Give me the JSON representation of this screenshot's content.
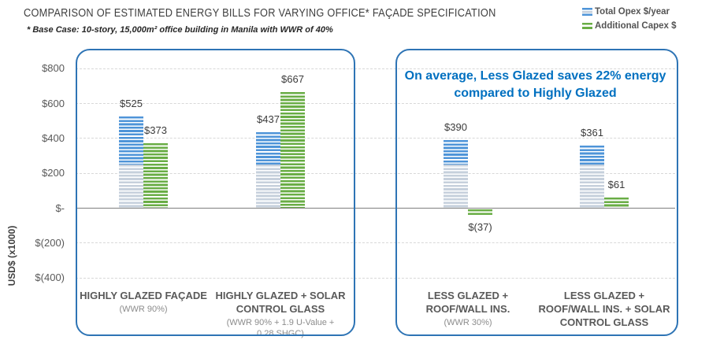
{
  "header": {
    "title": "COMPARISON OF ESTIMATED ENERGY BILLS FOR VARYING OFFICE* FAÇADE SPECIFICATION",
    "subtitle": "* Base Case: 10-story, 15,000m² office building in Manila with WWR of 40%"
  },
  "legend": {
    "items": [
      {
        "label": "Total Opex $/year",
        "swatch": "blue-grey-stripes"
      },
      {
        "label": "Additional Capex $",
        "swatch": "green-stripes"
      }
    ]
  },
  "annotation": {
    "text": "On average, Less Glazed saves 22% energy compared to Highly Glazed",
    "color": "#0070C0"
  },
  "y_axis": {
    "label": "USD$ (x1000)",
    "ticks": [
      {
        "label": "$800",
        "value": 800
      },
      {
        "label": "$600",
        "value": 600
      },
      {
        "label": "$400",
        "value": 400
      },
      {
        "label": "$200",
        "value": 200
      },
      {
        "label": "$-",
        "value": 0
      },
      {
        "label": "$(200)",
        "value": -200
      },
      {
        "label": "$(400)",
        "value": -400
      }
    ]
  },
  "chart_data": {
    "type": "bar",
    "title": "Comparison of estimated energy bills for varying office façade specification",
    "ylabel": "USD$ (x1000)",
    "ylim": [
      -400,
      800
    ],
    "gridline_step": 200,
    "grid": "dashed-horizontal",
    "legend_position": "top-right",
    "series_names": [
      "Total Opex $/year",
      "Additional Capex $"
    ],
    "opex_grey_base_value": 250,
    "groups": [
      {
        "category": "HIGHLY GLAZED FAÇADE",
        "subcategory": "(WWR 90%)",
        "panel": "left",
        "opex": 525,
        "opex_label": "$525",
        "capex": 373,
        "capex_label": "$373"
      },
      {
        "category": "HIGHLY GLAZED + SOLAR CONTROL GLASS",
        "subcategory": "(WWR 90% + 1.9 U-Value + 0.28 SHGC)",
        "panel": "left",
        "opex": 437,
        "opex_label": "$437",
        "capex": 667,
        "capex_label": "$667"
      },
      {
        "category": "LESS GLAZED + ROOF/WALL INS.",
        "subcategory": "(WWR 30%)",
        "panel": "right",
        "opex": 390,
        "opex_label": "$390",
        "capex": -37,
        "capex_label": "$(37)"
      },
      {
        "category": "LESS GLAZED + ROOF/WALL INS. + SOLAR CONTROL GLASS",
        "subcategory": "",
        "panel": "right",
        "opex": 361,
        "opex_label": "$361",
        "capex": 61,
        "capex_label": "$61"
      }
    ]
  },
  "colors": {
    "opex_stripe": "#4E94D8",
    "opex_grey_stripe": "#C6D0DC",
    "capex_stripe": "#69AD45",
    "panel_border": "#2E74B5",
    "gridline": "#D8D8D8",
    "axis_line": "#7F7F7F",
    "tick_text": "#595959",
    "category_text": "#595959",
    "annotation_blue": "#0070C0",
    "title_text": "#3F3F3F"
  }
}
